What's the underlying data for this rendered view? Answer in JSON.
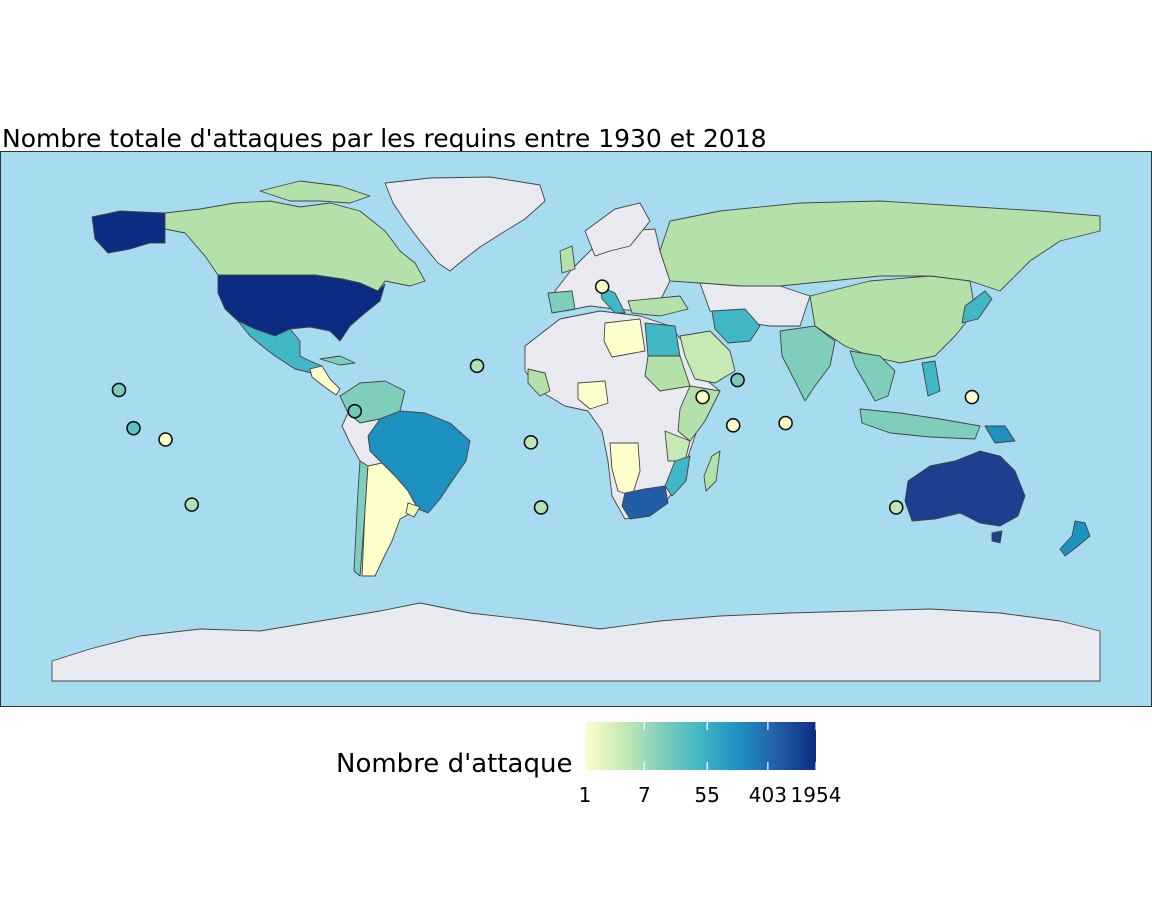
{
  "chart_data": {
    "type": "choropleth-map",
    "title": "Nombre totale d'attaques par les requins entre 1930 et 2018",
    "scale": "log",
    "legend": {
      "title": "Nombre d'attaque",
      "breaks": [
        1,
        7,
        55,
        403,
        1954
      ],
      "labels": [
        "1",
        "7",
        "55",
        "403",
        "1954"
      ],
      "colors": [
        "#ffffcc",
        "#c7e9b4",
        "#7fcdbb",
        "#41b6c4",
        "#1d91c0",
        "#225ea8",
        "#0c2c84"
      ]
    },
    "colors": {
      "ocean": "#a6dbf0",
      "no_data": "#e9eaf0",
      "border": "#444444"
    },
    "regions": [
      {
        "name": "USA",
        "value": 1954
      },
      {
        "name": "Australia",
        "value": 1000
      },
      {
        "name": "South Africa",
        "value": 560
      },
      {
        "name": "Brazil",
        "value": 110
      },
      {
        "name": "Papua New Guinea",
        "value": 130
      },
      {
        "name": "New Zealand",
        "value": 65
      },
      {
        "name": "Mexico",
        "value": 50
      },
      {
        "name": "Iran",
        "value": 30
      },
      {
        "name": "Egypt",
        "value": 28
      },
      {
        "name": "Mozambique",
        "value": 35
      },
      {
        "name": "Italy",
        "value": 30
      },
      {
        "name": "Spain",
        "value": 12
      },
      {
        "name": "Japan",
        "value": 30
      },
      {
        "name": "Philippines",
        "value": 25
      },
      {
        "name": "India",
        "value": 20
      },
      {
        "name": "Cuba",
        "value": 20
      },
      {
        "name": "Canada",
        "value": 7
      },
      {
        "name": "Alaska",
        "value": 1954
      },
      {
        "name": "Russia",
        "value": 5
      },
      {
        "name": "China",
        "value": 5
      },
      {
        "name": "Colombia",
        "value": 8
      },
      {
        "name": "Venezuela",
        "value": 6
      },
      {
        "name": "Chile",
        "value": 8
      },
      {
        "name": "Argentina",
        "value": 1
      },
      {
        "name": "Libya",
        "value": 1
      },
      {
        "name": "Nigeria",
        "value": 1
      },
      {
        "name": "Namibia",
        "value": 1
      },
      {
        "name": "Angola",
        "value": 1
      },
      {
        "name": "Saudi Arabia",
        "value": 4
      },
      {
        "name": "Sudan",
        "value": 6
      },
      {
        "name": "Somalia",
        "value": 10
      },
      {
        "name": "Kenya",
        "value": 9
      },
      {
        "name": "Tanzania",
        "value": 8
      },
      {
        "name": "Madagascar",
        "value": 7
      },
      {
        "name": "Indonesia",
        "value": 12
      },
      {
        "name": "Vietnam",
        "value": 10
      },
      {
        "name": "Thailand",
        "value": 8
      },
      {
        "name": "Norway",
        "value": 1
      },
      {
        "name": "United Kingdom",
        "value": 9
      },
      {
        "name": "Greece",
        "value": 11
      },
      {
        "name": "Turkey",
        "value": 7
      },
      {
        "name": "Uruguay",
        "value": 2
      }
    ],
    "points": [
      {
        "name": "Hawaii",
        "lon": -157,
        "lat": 20.5,
        "value": 14
      },
      {
        "name": "Pacific (Marshall Is.)",
        "lon": -152,
        "lat": 7,
        "value": 24
      },
      {
        "name": "Pacific (Kiribati)",
        "lon": -141,
        "lat": 3,
        "value": 1
      },
      {
        "name": "Pacific (French Polynesia)",
        "lon": -132,
        "lat": -20,
        "value": 5
      },
      {
        "name": "Bahamas",
        "lon": -76,
        "lat": 13,
        "value": 17
      },
      {
        "name": "Azores",
        "lon": -34,
        "lat": 29,
        "value": 5
      },
      {
        "name": "Atlantic (St Helena)",
        "lon": -15.5,
        "lat": 2,
        "value": 4
      },
      {
        "name": "Atlantic (Tristan)",
        "lon": -12,
        "lat": -21,
        "value": 5
      },
      {
        "name": "North Sea",
        "lon": 9,
        "lat": 57,
        "value": 1
      },
      {
        "name": "Red Sea",
        "lon": 43.5,
        "lat": 18,
        "value": 1
      },
      {
        "name": "Persian Gulf",
        "lon": 55.5,
        "lat": 24,
        "value": 14
      },
      {
        "name": "Gulf of Aden",
        "lon": 54,
        "lat": 8,
        "value": 1
      },
      {
        "name": "Maldives area",
        "lon": 72,
        "lat": 8.8,
        "value": 1
      },
      {
        "name": "Indian Ocean (south)",
        "lon": 110,
        "lat": -21,
        "value": 4
      },
      {
        "name": "South China Sea",
        "lon": 136,
        "lat": 18,
        "value": 1
      }
    ]
  }
}
